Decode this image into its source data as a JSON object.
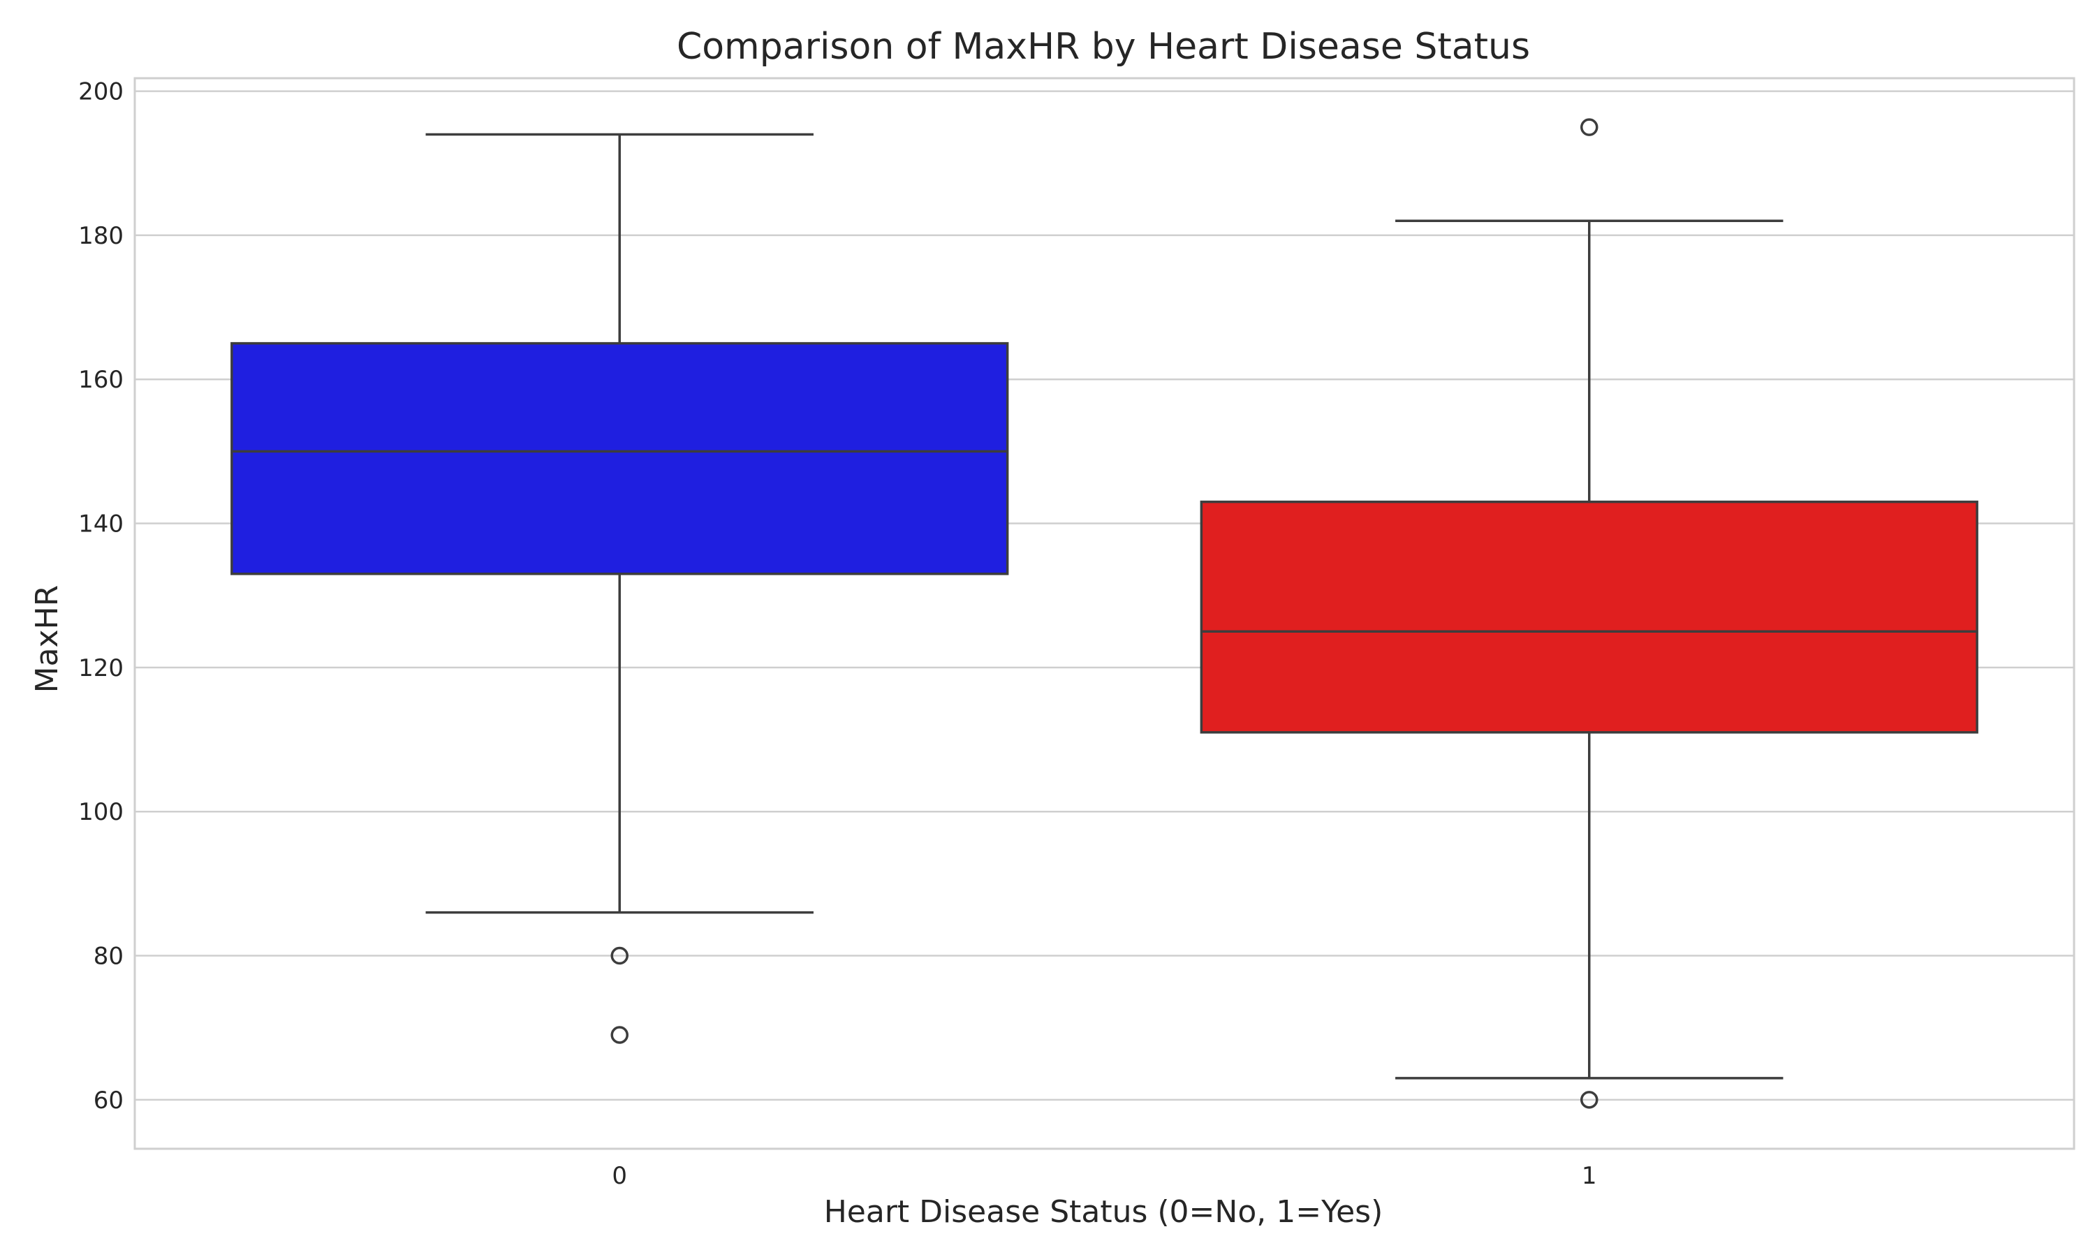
{
  "chart_data": {
    "type": "box",
    "title": "Comparison of MaxHR by Heart Disease Status",
    "xlabel": "Heart Disease Status (0=No, 1=Yes)",
    "ylabel": "MaxHR",
    "categories": [
      "0",
      "1"
    ],
    "ylim": [
      53.2,
      201.8
    ],
    "yticks": [
      60,
      80,
      100,
      120,
      140,
      160,
      180,
      200
    ],
    "grid": true,
    "boxes": [
      {
        "category": "0",
        "color": "#1f1fe0",
        "whisker_low": 86,
        "q1": 133,
        "median": 150,
        "q3": 165,
        "whisker_high": 194,
        "outliers": [
          80,
          69
        ]
      },
      {
        "category": "1",
        "color": "#e01f1f",
        "whisker_low": 63,
        "q1": 111,
        "median": 125,
        "q3": 143,
        "whisker_high": 182,
        "outliers": [
          195,
          60
        ]
      }
    ]
  }
}
